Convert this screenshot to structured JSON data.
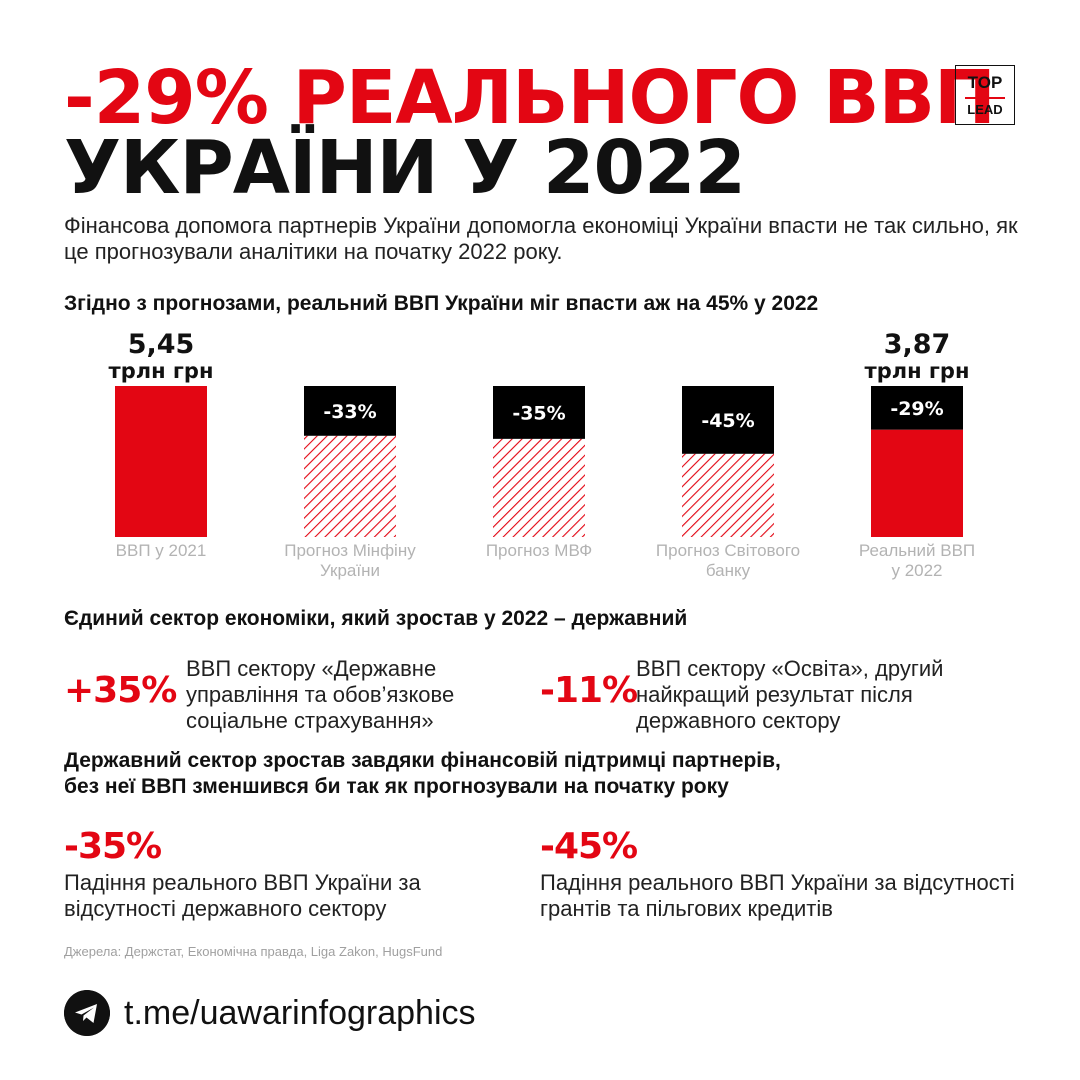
{
  "title": {
    "line1": "-29% РЕАЛЬНОГО ВВП",
    "line2": "УКРАЇНИ У 2022"
  },
  "logo": {
    "top": "TOP",
    "bottom": "LEAD"
  },
  "intro": "Фінансова допомога партнерів України допомогла економіці України впасти не так сильно, як це прогнозували аналітики на початку 2022 року.",
  "chart_heading": "Згідно з прогнозами, реальний ВВП України міг впасти аж на 45% у 2022",
  "chart_data": {
    "type": "bar",
    "categories": [
      "ВВП у 2021",
      "Прогноз Мінфіну України",
      "Прогноз МВФ",
      "Прогноз Світового банку",
      "Реальний ВВП у 2022"
    ],
    "category_lines": [
      [
        "ВВП у 2021"
      ],
      [
        "Прогноз Мінфіну",
        "України"
      ],
      [
        "Прогноз МВФ"
      ],
      [
        "Прогноз Світового",
        "банку"
      ],
      [
        "Реальний ВВП",
        "у 2022"
      ]
    ],
    "values": [
      5.45,
      3.65,
      3.54,
      3.0,
      3.87
    ],
    "change_labels": [
      "",
      "-33%",
      "-35%",
      "-45%",
      "-29%"
    ],
    "total_labels": [
      {
        "value": "5,45",
        "unit": "трлн грн"
      },
      null,
      null,
      null,
      {
        "value": "3,87",
        "unit": "трлн грн"
      }
    ],
    "bar_styles": [
      "solid",
      "hatched",
      "hatched",
      "hatched",
      "solid"
    ],
    "colors": {
      "accent": "#e30613",
      "loss": "#000000",
      "text_muted": "#b3b3b3"
    }
  },
  "sector_heading": "Єдиний сектор економіки, який зростав у 2022 – державний",
  "sector_stats": [
    {
      "value": "+35%",
      "text": "ВВП сектору «Державне управління та обов’язкове соціальне страхування»"
    },
    {
      "value": "-11%",
      "text": "ВВП сектору «Освіта», другий найкращий результат після державного сектору"
    }
  ],
  "support_heading": {
    "line1": "Державний сектор зростав завдяки фінансовій підтримці партнерів,",
    "line2": "без неї ВВП зменшився би так як прогнозували на початку року"
  },
  "support_stats": [
    {
      "value": "-35%",
      "text": "Падіння реального ВВП України за відсутності державного сектору"
    },
    {
      "value": "-45%",
      "text": "Падіння реального ВВП України за відсутності грантів та пільгових кредитів"
    }
  ],
  "sources": "Джерела: Держстат, Економічна правда, Liga Zakon, HugsFund",
  "footer": {
    "icon": "telegram-icon",
    "link": "t.me/uawarinfographics"
  },
  "colors": {
    "accent": "#e30613",
    "text": "#111111"
  }
}
